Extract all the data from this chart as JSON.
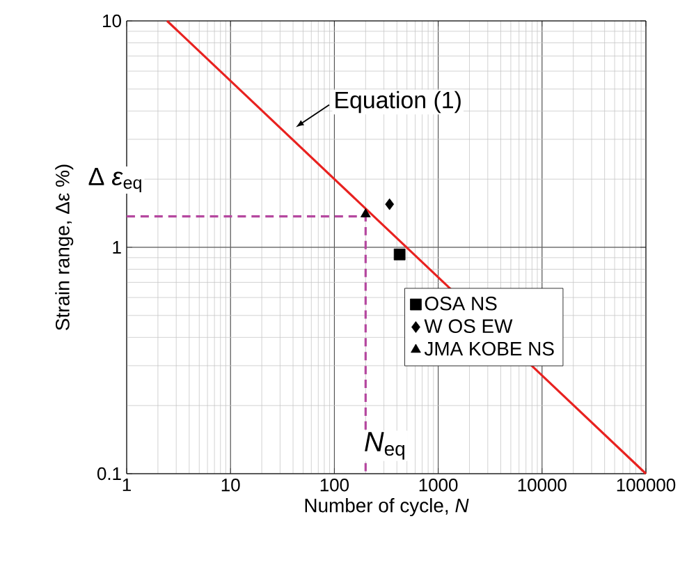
{
  "chart_data": {
    "type": "scatter",
    "xlabel": "Number of cycle, *N*",
    "ylabel": "Strain range, Δε %)",
    "log": "xy",
    "grid": true,
    "legend": "right",
    "xlim": [
      1,
      100000
    ],
    "ylim": [
      0.1,
      10
    ],
    "xticks": [
      1,
      10,
      100,
      1000,
      10000,
      100000
    ],
    "yticks": [
      0.1,
      1,
      10
    ],
    "series": [
      {
        "type": "line",
        "color": "#e8211f",
        "x": [
          2.45,
          100000
        ],
        "values": [
          10,
          0.1
        ],
        "line_style": "solid",
        "marker": "none"
      },
      {
        "type": "line",
        "color": "#b5479f",
        "x": [
          1,
          200,
          200
        ],
        "values": [
          1.37,
          1.37,
          0.1
        ],
        "line_style": "dashed",
        "marker": "none"
      },
      {
        "name": "OSA NS",
        "color": "#000000",
        "x": [
          425
        ],
        "values": [
          0.93
        ],
        "marker": "square"
      },
      {
        "name": "W OS EW",
        "color": "#000000",
        "x": [
          340
        ],
        "values": [
          1.55
        ],
        "marker": "diamond"
      },
      {
        "name": "JMA KOBE NS",
        "color": "#000000",
        "x": [
          200
        ],
        "values": [
          1.4
        ],
        "marker": "triangle"
      }
    ],
    "annotations": [
      {
        "text": "Equation (1)",
        "x": 40,
        "y": 3.3
      },
      {
        "text": "Δ *ε*$_{eq}$",
        "x": 1,
        "y": 1.37
      },
      {
        "text": "*N*$_{eq}$",
        "x": 200,
        "y": 0.1
      }
    ]
  }
}
